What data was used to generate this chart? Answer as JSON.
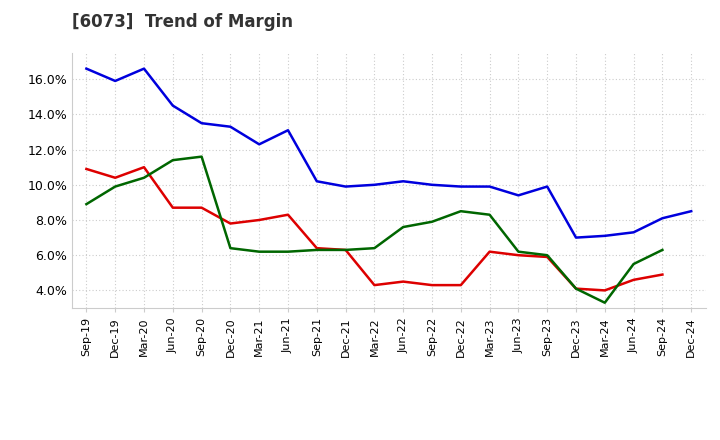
{
  "title": "[6073]  Trend of Margin",
  "x_labels": [
    "Sep-19",
    "Dec-19",
    "Mar-20",
    "Jun-20",
    "Sep-20",
    "Dec-20",
    "Mar-21",
    "Jun-21",
    "Sep-21",
    "Dec-21",
    "Mar-22",
    "Jun-22",
    "Sep-22",
    "Dec-22",
    "Mar-23",
    "Jun-23",
    "Sep-23",
    "Dec-23",
    "Mar-24",
    "Jun-24",
    "Sep-24",
    "Dec-24"
  ],
  "ordinary_income": [
    16.6,
    15.9,
    16.6,
    14.5,
    13.5,
    13.3,
    12.3,
    13.1,
    10.2,
    9.9,
    10.0,
    10.2,
    10.0,
    9.9,
    9.9,
    9.4,
    9.9,
    7.0,
    7.1,
    7.3,
    8.1,
    8.5
  ],
  "net_income": [
    10.9,
    10.4,
    11.0,
    8.7,
    8.7,
    7.8,
    8.0,
    8.3,
    6.4,
    6.3,
    4.3,
    4.5,
    4.3,
    4.3,
    6.2,
    6.0,
    5.9,
    4.1,
    4.0,
    4.6,
    4.9,
    null
  ],
  "operating_cashflow": [
    8.9,
    9.9,
    10.4,
    11.4,
    11.6,
    6.4,
    6.2,
    6.2,
    6.3,
    6.3,
    6.4,
    7.6,
    7.9,
    8.5,
    8.3,
    6.2,
    6.0,
    4.1,
    3.3,
    5.5,
    6.3,
    null
  ],
  "ylim": [
    3.0,
    17.5
  ],
  "yticks": [
    4.0,
    6.0,
    8.0,
    10.0,
    12.0,
    14.0,
    16.0
  ],
  "line_color_oi": "#0000dd",
  "line_color_ni": "#dd0000",
  "line_color_ocf": "#006600",
  "background_color": "#ffffff",
  "grid_color": "#cccccc"
}
